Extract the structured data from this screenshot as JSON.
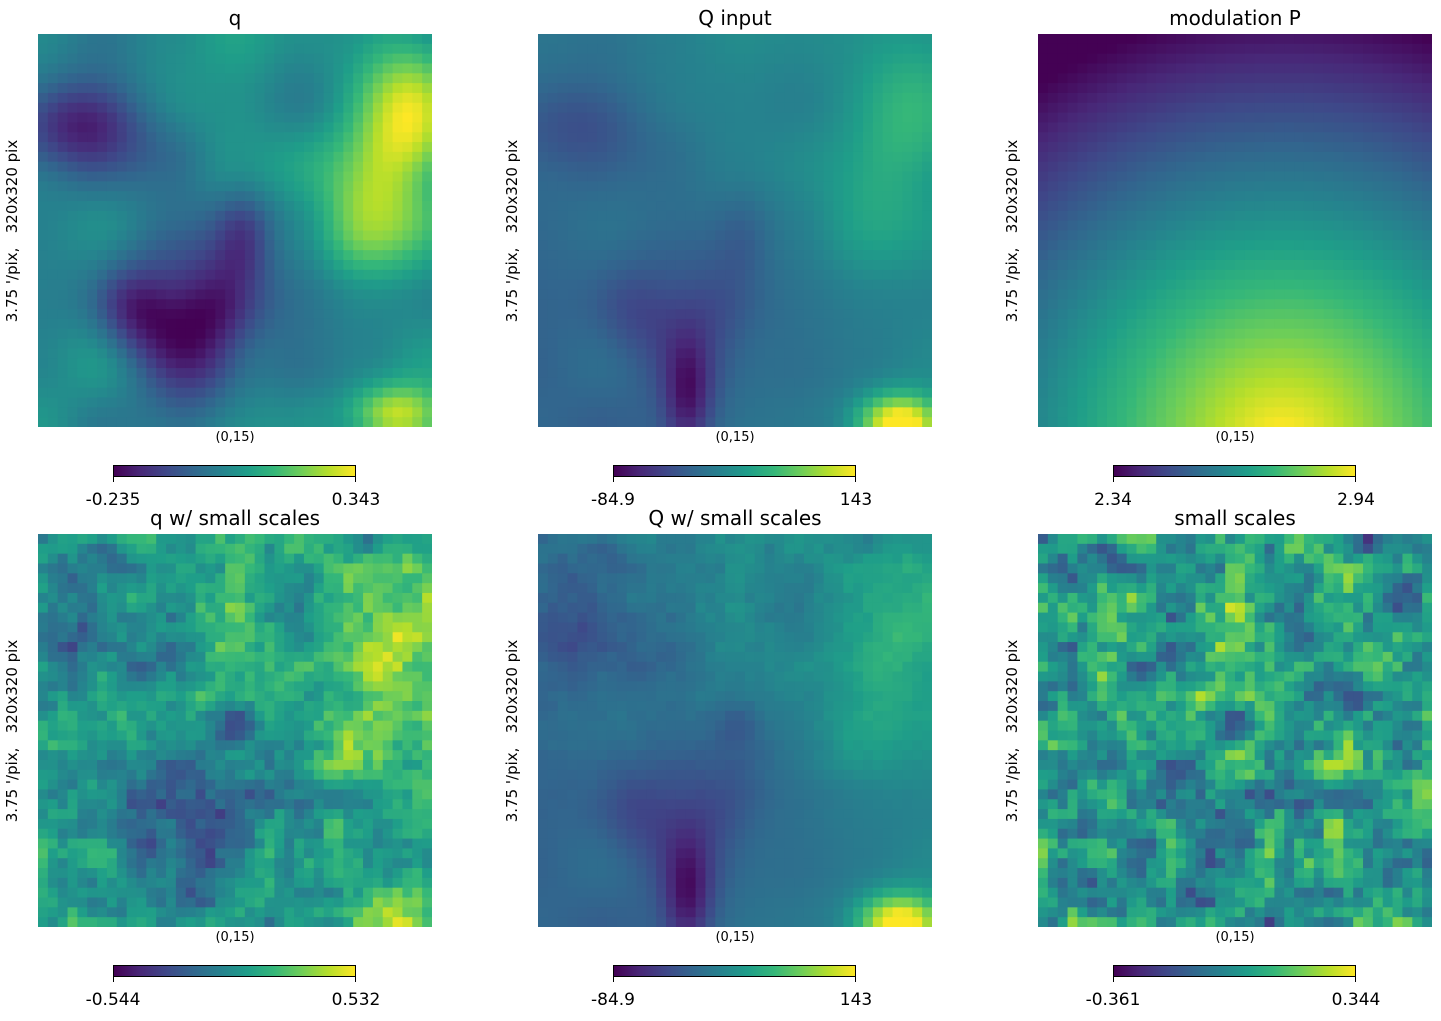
{
  "figure": {
    "y_label": "3.75 '/pix,   320x320 pix",
    "x_label": "(0,15)"
  },
  "panels": [
    {
      "title": "q",
      "cmin": "-0.235",
      "cmax": "0.343"
    },
    {
      "title": "Q input",
      "cmin": "-84.9",
      "cmax": "143"
    },
    {
      "title": "modulation P",
      "cmin": "2.34",
      "cmax": "2.94"
    },
    {
      "title": "q w/ small scales",
      "cmin": "-0.544",
      "cmax": "0.532"
    },
    {
      "title": "Q w/ small scales",
      "cmin": "-84.9",
      "cmax": "143"
    },
    {
      "title": "small scales",
      "cmin": "-0.361",
      "cmax": "0.344"
    }
  ],
  "chart_data": [
    {
      "type": "heatmap",
      "title": "q",
      "colormap": "viridis",
      "vmin": -0.235,
      "vmax": 0.343,
      "xlabel": "(0,15)",
      "ylabel": "3.75 '/pix,   320x320 pix",
      "grid": false
    },
    {
      "type": "heatmap",
      "title": "Q input",
      "colormap": "viridis",
      "vmin": -84.9,
      "vmax": 143,
      "xlabel": "(0,15)",
      "ylabel": "3.75 '/pix,   320x320 pix",
      "grid": false
    },
    {
      "type": "heatmap",
      "title": "modulation P",
      "colormap": "viridis",
      "vmin": 2.34,
      "vmax": 2.94,
      "xlabel": "(0,15)",
      "ylabel": "3.75 '/pix,   320x320 pix",
      "grid": false
    },
    {
      "type": "heatmap",
      "title": "q w/ small scales",
      "colormap": "viridis",
      "vmin": -0.544,
      "vmax": 0.532,
      "xlabel": "(0,15)",
      "ylabel": "3.75 '/pix,   320x320 pix",
      "grid": false
    },
    {
      "type": "heatmap",
      "title": "Q w/ small scales",
      "colormap": "viridis",
      "vmin": -84.9,
      "vmax": 143,
      "xlabel": "(0,15)",
      "ylabel": "3.75 '/pix,   320x320 pix",
      "grid": false
    },
    {
      "type": "heatmap",
      "title": "small scales",
      "colormap": "viridis",
      "vmin": -0.361,
      "vmax": 0.344,
      "xlabel": "(0,15)",
      "ylabel": "3.75 '/pix,   320x320 pix",
      "grid": false
    }
  ]
}
